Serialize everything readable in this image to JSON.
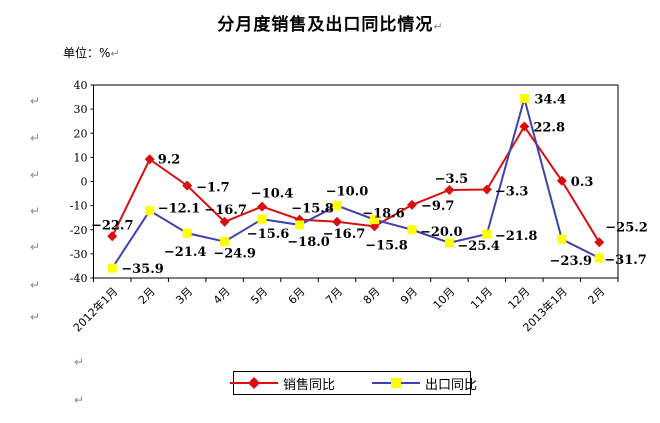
{
  "page": {
    "title": "分月度销售及出口同比情况",
    "unit_label": "单位：%",
    "paragraph_mark": "↵"
  },
  "chart_data": {
    "type": "line",
    "title": "分月度销售及出口同比情况",
    "unit": "%",
    "categories": [
      "2012年1月",
      "2月",
      "3月",
      "4月",
      "5月",
      "6月",
      "7月",
      "8月",
      "9月",
      "10月",
      "11月",
      "12月",
      "2013年1月",
      "2月"
    ],
    "series": [
      {
        "name": "销售同比",
        "color": "#d90f0f",
        "marker": "diamond",
        "marker_color": "#d90f0f",
        "values": [
          -22.7,
          9.2,
          -1.7,
          -16.7,
          -10.4,
          -15.8,
          -16.7,
          -18.6,
          -9.7,
          -3.5,
          -3.3,
          22.8,
          0.3,
          -25.2
        ],
        "label_offsets": [
          [
            0,
            -7,
            "middle"
          ],
          [
            8,
            4,
            "start"
          ],
          [
            9,
            6,
            "start"
          ],
          [
            1,
            -8,
            "middle"
          ],
          [
            10,
            -9,
            "middle"
          ],
          [
            13,
            -7,
            "middle"
          ],
          [
            7,
            16,
            "middle"
          ],
          [
            9,
            -9,
            "middle"
          ],
          [
            9,
            5,
            "start"
          ],
          [
            2,
            -7,
            "middle"
          ],
          [
            8,
            6,
            "start"
          ],
          [
            9,
            5,
            "start"
          ],
          [
            9,
            5,
            "start"
          ],
          [
            6,
            -11,
            "start"
          ]
        ]
      },
      {
        "name": "出口同比",
        "color": "#4141ad",
        "marker": "square",
        "marker_color": "#ffff00",
        "values": [
          -35.9,
          -12.1,
          -21.4,
          -24.9,
          -15.6,
          -18.0,
          -10.0,
          -15.8,
          -20.0,
          -25.4,
          -21.8,
          34.4,
          -23.9,
          -31.7
        ],
        "label_offsets": [
          [
            9,
            5,
            "start"
          ],
          [
            8,
            2,
            "start"
          ],
          [
            -2,
            23,
            "middle"
          ],
          [
            10,
            16,
            "middle"
          ],
          [
            6,
            19,
            "middle"
          ],
          [
            9,
            21,
            "middle"
          ],
          [
            10,
            -10,
            "middle"
          ],
          [
            12,
            30,
            "middle"
          ],
          [
            8,
            6,
            "start"
          ],
          [
            8,
            7,
            "start"
          ],
          [
            8,
            6,
            "start"
          ],
          [
            10,
            5,
            "start"
          ],
          [
            9,
            26,
            "middle"
          ],
          [
            5,
            6,
            "start"
          ]
        ]
      }
    ],
    "ylim": [
      -40,
      40
    ],
    "ytick_step": 10,
    "grid": false,
    "data_labels": true,
    "legend_position": "bottom",
    "xlabel": "",
    "ylabel": "单位：%"
  }
}
